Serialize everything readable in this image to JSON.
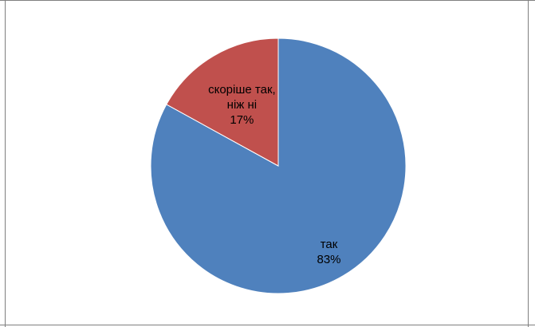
{
  "chart_data": {
    "type": "pie",
    "title": "",
    "slices": [
      {
        "label": "так",
        "value": 83,
        "percent_label": "83%",
        "color": "#4f81bd"
      },
      {
        "label": "скоріше так, ніж ні",
        "value": 17,
        "percent_label": "17%",
        "color": "#c0504d"
      }
    ],
    "start_angle_deg": 0,
    "direction": "clockwise",
    "legend": "none",
    "data_labels": "inside"
  }
}
